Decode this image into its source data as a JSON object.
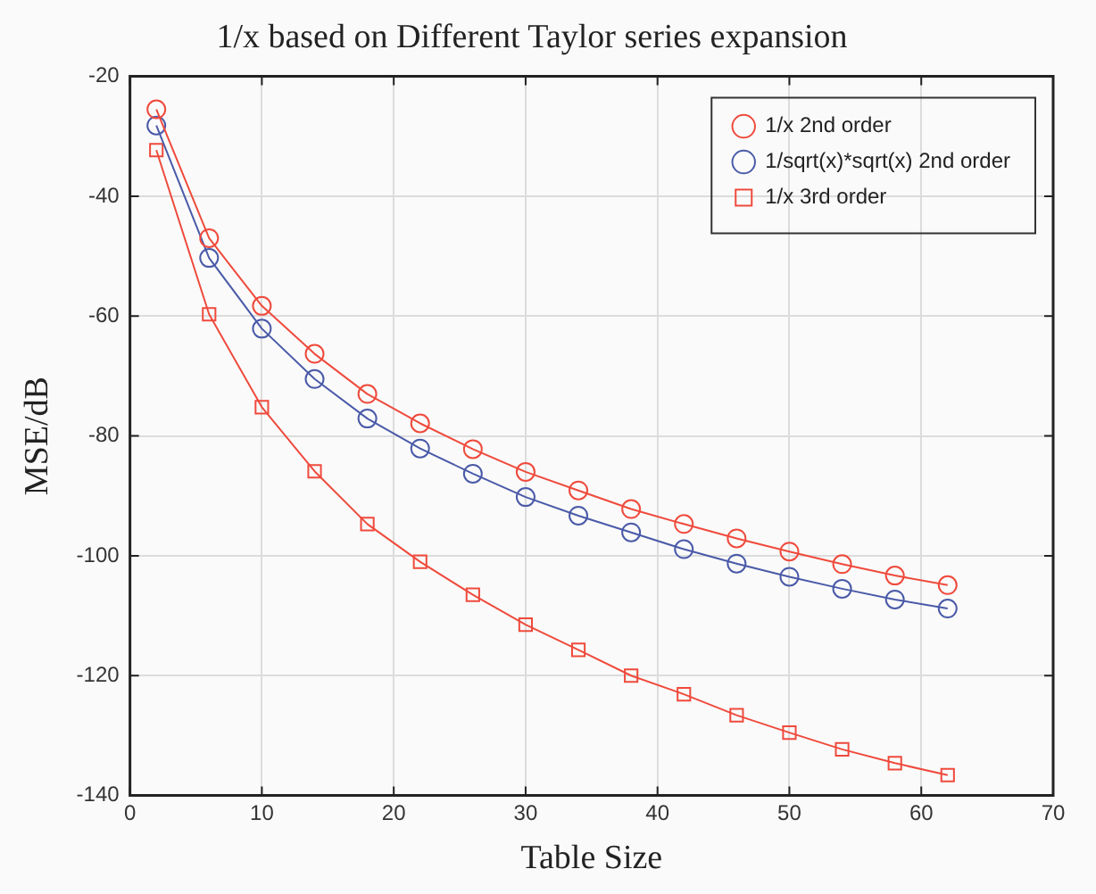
{
  "chart_data": {
    "type": "line",
    "title": "1/x based on Different Taylor series expansion",
    "xlabel": "Table Size",
    "ylabel": "MSE/dB",
    "x": [
      2,
      6,
      10,
      14,
      18,
      22,
      26,
      30,
      34,
      38,
      42,
      46,
      50,
      54,
      58,
      62
    ],
    "xlim": [
      0,
      70
    ],
    "xticks": [
      0,
      10,
      20,
      30,
      40,
      50,
      60,
      70
    ],
    "ylim": [
      -140,
      -20
    ],
    "yticks": [
      -140,
      -120,
      -100,
      -80,
      -60,
      -40,
      -20
    ],
    "grid": true,
    "legend": "top right",
    "line_style": "solid",
    "series": [
      {
        "name": "1/x 2nd order",
        "color": "#ef4a3c",
        "marker": "circle",
        "values": [
          -25.5,
          -47,
          -58.3,
          -66.3,
          -73,
          -77.9,
          -82.2,
          -86,
          -89.1,
          -92.2,
          -94.7,
          -97.1,
          -99.3,
          -101.4,
          -103.3,
          -104.9
        ]
      },
      {
        "name": "1/sqrt(x)*sqrt(x) 2nd order",
        "color": "#4a5aa8",
        "marker": "circle",
        "values": [
          -28.2,
          -50.3,
          -62.1,
          -70.5,
          -77.1,
          -82.1,
          -86.3,
          -90.2,
          -93.3,
          -96.1,
          -98.9,
          -101.3,
          -103.5,
          -105.5,
          -107.3,
          -108.8
        ]
      },
      {
        "name": "1/x 3rd order",
        "color": "#ef4a3c",
        "marker": "square",
        "values": [
          -32.3,
          -59.7,
          -75.2,
          -85.9,
          -94.7,
          -101,
          -106.5,
          -111.5,
          -115.7,
          -120,
          -123.1,
          -126.6,
          -129.5,
          -132.3,
          -134.6,
          -136.6
        ]
      }
    ]
  }
}
